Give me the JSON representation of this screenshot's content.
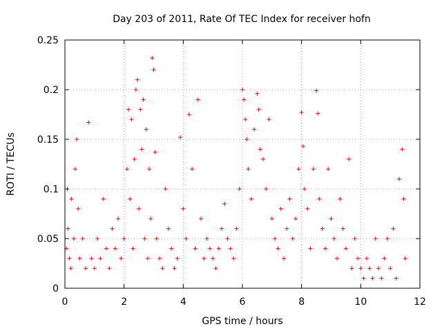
{
  "chart_data": {
    "type": "scatter",
    "title": "Day 203 of 2011, Rate Of TEC Index for receiver hofn",
    "xlabel": "GPS time / hours",
    "ylabel": "ROTI / TECUs",
    "xlim": [
      0,
      12
    ],
    "ylim": [
      0,
      0.25
    ],
    "x_ticks": [
      "0",
      "2",
      "4",
      "6",
      "8",
      "10",
      "12"
    ],
    "y_ticks": [
      "0",
      "0.05",
      "0.1",
      "0.15",
      "0.2",
      "0.25"
    ],
    "grid": true,
    "marker": "+",
    "colors": {
      "points": "#ff0000",
      "grid": "#b0b0b0",
      "frame": "#000000"
    },
    "series": [
      {
        "x": [
          0.05,
          0.08,
          0.1,
          0.15,
          0.2,
          0.22,
          0.3,
          0.35,
          0.4,
          0.45,
          0.5,
          0.6,
          0.7,
          0.8,
          0.9,
          1.0,
          1.1,
          1.2,
          1.3,
          1.4,
          1.5,
          1.6,
          1.7,
          1.8,
          1.9,
          2.0,
          2.1,
          2.15,
          2.2,
          2.25,
          2.3,
          2.35,
          2.4,
          2.45,
          2.5,
          2.55,
          2.6,
          2.65,
          2.7,
          2.75,
          2.8,
          2.85,
          2.9,
          2.95,
          3.0,
          3.05,
          3.1,
          3.2,
          3.3,
          3.4,
          3.5,
          3.6,
          3.7,
          3.8,
          3.9,
          4.0,
          4.1,
          4.2,
          4.3,
          4.4,
          4.5,
          4.6,
          4.7,
          4.8,
          4.9,
          5.0,
          5.1,
          5.2,
          5.3,
          5.4,
          5.5,
          5.6,
          5.7,
          5.8,
          5.9,
          6.0,
          6.05,
          6.1,
          6.15,
          6.2,
          6.3,
          6.4,
          6.5,
          6.55,
          6.6,
          6.7,
          6.8,
          6.9,
          7.0,
          7.1,
          7.2,
          7.3,
          7.4,
          7.5,
          7.6,
          7.7,
          7.8,
          7.9,
          8.0,
          8.05,
          8.1,
          8.2,
          8.3,
          8.4,
          8.5,
          8.55,
          8.6,
          8.7,
          8.8,
          8.9,
          9.0,
          9.1,
          9.2,
          9.3,
          9.4,
          9.5,
          9.6,
          9.7,
          9.8,
          9.9,
          10.0,
          10.1,
          10.2,
          10.3,
          10.4,
          10.5,
          10.6,
          10.7,
          10.8,
          10.9,
          11.0,
          11.1,
          11.2,
          11.3,
          11.4,
          11.45,
          11.5
        ],
        "y": [
          0.04,
          0.1,
          0.06,
          0.03,
          0.02,
          0.09,
          0.05,
          0.12,
          0.15,
          0.08,
          0.03,
          0.05,
          0.02,
          0.167,
          0.03,
          0.02,
          0.05,
          0.03,
          0.09,
          0.04,
          0.02,
          0.06,
          0.04,
          0.07,
          0.03,
          0.05,
          0.12,
          0.18,
          0.09,
          0.17,
          0.04,
          0.13,
          0.2,
          0.21,
          0.08,
          0.18,
          0.14,
          0.19,
          0.05,
          0.16,
          0.03,
          0.12,
          0.07,
          0.232,
          0.22,
          0.137,
          0.05,
          0.03,
          0.02,
          0.1,
          0.06,
          0.04,
          0.02,
          0.03,
          0.152,
          0.08,
          0.05,
          0.175,
          0.12,
          0.04,
          0.19,
          0.07,
          0.03,
          0.05,
          0.04,
          0.03,
          0.02,
          0.04,
          0.06,
          0.085,
          0.05,
          0.04,
          0.03,
          0.06,
          0.1,
          0.2,
          0.19,
          0.17,
          0.15,
          0.12,
          0.09,
          0.16,
          0.196,
          0.18,
          0.14,
          0.13,
          0.1,
          0.17,
          0.07,
          0.05,
          0.04,
          0.08,
          0.03,
          0.06,
          0.09,
          0.05,
          0.07,
          0.12,
          0.177,
          0.143,
          0.1,
          0.08,
          0.04,
          0.12,
          0.199,
          0.176,
          0.09,
          0.06,
          0.04,
          0.12,
          0.07,
          0.05,
          0.03,
          0.09,
          0.06,
          0.04,
          0.13,
          0.02,
          0.05,
          0.03,
          0.02,
          0.01,
          0.03,
          0.02,
          0.01,
          0.05,
          0.02,
          0.01,
          0.03,
          0.05,
          0.02,
          0.06,
          0.01,
          0.11,
          0.14,
          0.09,
          0.03
        ]
      }
    ]
  }
}
